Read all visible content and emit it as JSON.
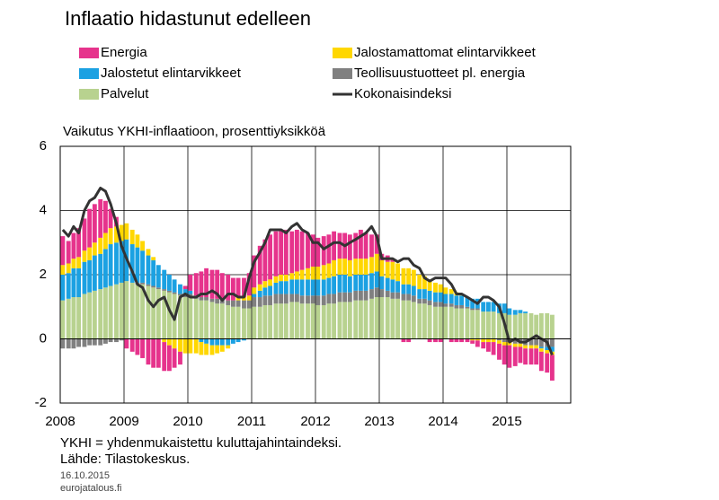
{
  "chart_data": {
    "type": "bar",
    "title": "Inflaatio hidastunut edelleen",
    "ylabel": "Vaikutus YKHI-inflaatioon, prosenttiyksikköä",
    "notes": [
      "YKHI = yhdenmukaistettu kuluttajahintaindeksi.",
      "Lähde: Tilastokeskus."
    ],
    "date": "16.10.2015",
    "source_url": "eurojatalous.fi",
    "stacked": true,
    "grid": true,
    "xlim": [
      2008,
      2016
    ],
    "xticks": [
      2008,
      2009,
      2010,
      2011,
      2012,
      2013,
      2014,
      2015
    ],
    "ylim": [
      -2,
      6
    ],
    "yticks": [
      -2,
      0,
      2,
      4,
      6
    ],
    "x": [
      2008.04,
      2008.13,
      2008.21,
      2008.29,
      2008.38,
      2008.46,
      2008.54,
      2008.63,
      2008.71,
      2008.79,
      2008.88,
      2008.96,
      2009.04,
      2009.13,
      2009.21,
      2009.29,
      2009.38,
      2009.46,
      2009.54,
      2009.63,
      2009.71,
      2009.79,
      2009.88,
      2009.96,
      2010.04,
      2010.13,
      2010.21,
      2010.29,
      2010.38,
      2010.46,
      2010.54,
      2010.63,
      2010.71,
      2010.79,
      2010.88,
      2010.96,
      2011.04,
      2011.13,
      2011.21,
      2011.29,
      2011.38,
      2011.46,
      2011.54,
      2011.63,
      2011.71,
      2011.79,
      2011.88,
      2011.96,
      2012.04,
      2012.13,
      2012.21,
      2012.29,
      2012.38,
      2012.46,
      2012.54,
      2012.63,
      2012.71,
      2012.79,
      2012.88,
      2012.96,
      2013.04,
      2013.13,
      2013.21,
      2013.29,
      2013.38,
      2013.46,
      2013.54,
      2013.63,
      2013.71,
      2013.79,
      2013.88,
      2013.96,
      2014.04,
      2014.13,
      2014.21,
      2014.29,
      2014.38,
      2014.46,
      2014.54,
      2014.63,
      2014.71,
      2014.79,
      2014.88,
      2014.96,
      2015.04,
      2015.13,
      2015.21,
      2015.29,
      2015.38,
      2015.46,
      2015.54,
      2015.63,
      2015.71
    ],
    "series": [
      {
        "name": "Palvelut",
        "kind": "bar",
        "color": "#b8d28f",
        "values": [
          1.2,
          1.25,
          1.3,
          1.3,
          1.4,
          1.45,
          1.5,
          1.55,
          1.6,
          1.65,
          1.7,
          1.75,
          1.8,
          1.75,
          1.7,
          1.7,
          1.65,
          1.6,
          1.55,
          1.5,
          1.45,
          1.4,
          1.35,
          1.3,
          1.3,
          1.25,
          1.2,
          1.2,
          1.15,
          1.1,
          1.1,
          1.05,
          1.0,
          1.0,
          0.95,
          0.95,
          1.0,
          1.0,
          1.05,
          1.05,
          1.1,
          1.1,
          1.1,
          1.15,
          1.15,
          1.1,
          1.1,
          1.1,
          1.05,
          1.05,
          1.1,
          1.1,
          1.15,
          1.15,
          1.15,
          1.2,
          1.2,
          1.2,
          1.25,
          1.3,
          1.3,
          1.3,
          1.25,
          1.25,
          1.2,
          1.2,
          1.15,
          1.1,
          1.1,
          1.05,
          1.0,
          1.0,
          1.0,
          1.0,
          0.95,
          0.95,
          0.95,
          0.9,
          0.9,
          0.85,
          0.85,
          0.85,
          0.8,
          0.8,
          0.75,
          0.75,
          0.8,
          0.8,
          0.8,
          0.75,
          0.8,
          0.8,
          0.75
        ]
      },
      {
        "name": "Teollisuustuotteet pl. energia",
        "kind": "bar",
        "color": "#808080",
        "values": [
          -0.3,
          -0.3,
          -0.3,
          -0.25,
          -0.25,
          -0.2,
          -0.2,
          -0.2,
          -0.15,
          -0.1,
          -0.1,
          -0.05,
          0,
          0,
          0.05,
          0.05,
          0.05,
          0.05,
          0.05,
          0.05,
          0.05,
          0.05,
          0.05,
          0.05,
          0.1,
          0.1,
          0.1,
          0.1,
          0.1,
          0.15,
          0.15,
          0.15,
          0.2,
          0.2,
          0.25,
          0.25,
          0.3,
          0.3,
          0.3,
          0.3,
          0.3,
          0.3,
          0.3,
          0.25,
          0.25,
          0.25,
          0.25,
          0.25,
          0.3,
          0.3,
          0.3,
          0.3,
          0.3,
          0.3,
          0.3,
          0.3,
          0.3,
          0.3,
          0.3,
          0.3,
          0.25,
          0.2,
          0.2,
          0.2,
          0.2,
          0.2,
          0.2,
          0.15,
          0.15,
          0.15,
          0.15,
          0.15,
          0.1,
          0.1,
          0.1,
          0.1,
          0.05,
          0.05,
          0.05,
          0,
          0,
          0,
          -0.05,
          -0.1,
          -0.1,
          -0.15,
          -0.15,
          -0.2,
          -0.2,
          -0.2,
          -0.25,
          -0.25,
          -0.25
        ]
      },
      {
        "name": "Jalostetut elintarvikkeet",
        "kind": "bar",
        "color": "#1ba1e2",
        "values": [
          0.8,
          0.8,
          0.9,
          0.9,
          1.0,
          1.0,
          1.1,
          1.1,
          1.2,
          1.3,
          1.3,
          1.3,
          1.3,
          1.2,
          1.1,
          1.0,
          0.9,
          0.8,
          0.7,
          0.6,
          0.5,
          0.4,
          0.3,
          0.2,
          0.1,
          0,
          -0.1,
          -0.15,
          -0.2,
          -0.2,
          -0.2,
          -0.2,
          -0.15,
          -0.1,
          -0.05,
          0,
          0.1,
          0.2,
          0.25,
          0.3,
          0.35,
          0.4,
          0.4,
          0.45,
          0.45,
          0.5,
          0.5,
          0.5,
          0.5,
          0.5,
          0.5,
          0.55,
          0.55,
          0.55,
          0.5,
          0.5,
          0.5,
          0.5,
          0.5,
          0.5,
          0.4,
          0.4,
          0.4,
          0.35,
          0.3,
          0.3,
          0.3,
          0.3,
          0.3,
          0.3,
          0.3,
          0.3,
          0.3,
          0.3,
          0.3,
          0.3,
          0.3,
          0.3,
          0.3,
          0.3,
          0.3,
          0.3,
          0.3,
          0.3,
          0.2,
          0.15,
          0.1,
          0.05,
          0,
          0,
          -0.05,
          -0.1,
          -0.15
        ]
      },
      {
        "name": "Jalostamattomat elintarvikkeet",
        "kind": "bar",
        "color": "#ffd700",
        "values": [
          0.3,
          0.3,
          0.3,
          0.35,
          0.35,
          0.4,
          0.4,
          0.5,
          0.5,
          0.5,
          0.5,
          0.5,
          0.5,
          0.45,
          0.4,
          0.3,
          0.2,
          0.1,
          0,
          -0.1,
          -0.2,
          -0.3,
          -0.4,
          -0.45,
          -0.45,
          -0.45,
          -0.4,
          -0.35,
          -0.3,
          -0.25,
          -0.2,
          -0.1,
          0,
          0.1,
          0.1,
          0.15,
          0.2,
          0.2,
          0.2,
          0.2,
          0.2,
          0.2,
          0.2,
          0.2,
          0.25,
          0.3,
          0.35,
          0.4,
          0.4,
          0.45,
          0.45,
          0.5,
          0.5,
          0.5,
          0.5,
          0.5,
          0.5,
          0.5,
          0.5,
          0.55,
          0.5,
          0.5,
          0.55,
          0.55,
          0.5,
          0.5,
          0.5,
          0.45,
          0.4,
          0.35,
          0.3,
          0.25,
          0.2,
          0.15,
          0.1,
          0.05,
          0,
          -0.05,
          -0.05,
          -0.1,
          -0.1,
          -0.1,
          -0.1,
          -0.1,
          -0.1,
          -0.1,
          -0.1,
          -0.1,
          -0.1,
          -0.1,
          -0.1,
          -0.1,
          -0.1
        ]
      },
      {
        "name": "Energia",
        "kind": "bar",
        "color": "#e6338c",
        "values": [
          0.9,
          0.7,
          0.8,
          0.9,
          1.0,
          1.2,
          1.2,
          1.2,
          1.0,
          0.6,
          0.3,
          0,
          -0.3,
          -0.4,
          -0.5,
          -0.6,
          -0.8,
          -0.9,
          -0.9,
          -0.9,
          -0.8,
          -0.6,
          -0.4,
          0.1,
          0.5,
          0.7,
          0.8,
          0.9,
          0.9,
          0.9,
          0.8,
          0.8,
          0.7,
          0.6,
          0.6,
          0.7,
          1.0,
          1.2,
          1.3,
          1.4,
          1.4,
          1.4,
          1.4,
          1.3,
          1.3,
          1.2,
          1.1,
          1.0,
          0.9,
          0.9,
          0.9,
          0.9,
          0.8,
          0.8,
          0.8,
          0.8,
          0.9,
          0.8,
          0.7,
          0.6,
          0.2,
          0.2,
          0.1,
          0,
          -0.1,
          -0.1,
          0,
          0,
          0,
          -0.1,
          -0.1,
          -0.1,
          0,
          -0.1,
          -0.1,
          -0.1,
          -0.1,
          -0.1,
          -0.2,
          -0.2,
          -0.3,
          -0.4,
          -0.5,
          -0.6,
          -0.7,
          -0.6,
          -0.5,
          -0.5,
          -0.5,
          -0.5,
          -0.6,
          -0.6,
          -0.8
        ]
      },
      {
        "name": "Kokonaisindeksi",
        "kind": "line",
        "color": "#333333",
        "values": [
          3.4,
          3.2,
          3.5,
          3.3,
          4.0,
          4.3,
          4.4,
          4.7,
          4.6,
          4.2,
          3.6,
          2.9,
          2.5,
          2.1,
          1.7,
          1.6,
          1.2,
          1.0,
          1.2,
          1.3,
          0.9,
          0.6,
          1.3,
          1.4,
          1.3,
          1.3,
          1.4,
          1.4,
          1.5,
          1.4,
          1.2,
          1.4,
          1.4,
          1.3,
          1.3,
          1.9,
          2.4,
          2.7,
          3.0,
          3.4,
          3.4,
          3.4,
          3.3,
          3.5,
          3.6,
          3.4,
          3.3,
          3.0,
          3.0,
          2.8,
          2.9,
          3.0,
          3.0,
          2.9,
          3.0,
          3.1,
          3.2,
          3.3,
          3.5,
          3.2,
          2.5,
          2.5,
          2.5,
          2.4,
          2.5,
          2.5,
          2.3,
          2.2,
          1.9,
          1.8,
          1.9,
          1.9,
          1.9,
          1.7,
          1.4,
          1.4,
          1.3,
          1.2,
          1.1,
          1.3,
          1.3,
          1.2,
          1.0,
          0.5,
          -0.1,
          0.0,
          -0.1,
          -0.1,
          0.0,
          0.1,
          0.0,
          -0.1,
          -0.5
        ]
      }
    ],
    "legend_order": [
      4,
      3,
      2,
      1,
      0,
      5
    ]
  }
}
